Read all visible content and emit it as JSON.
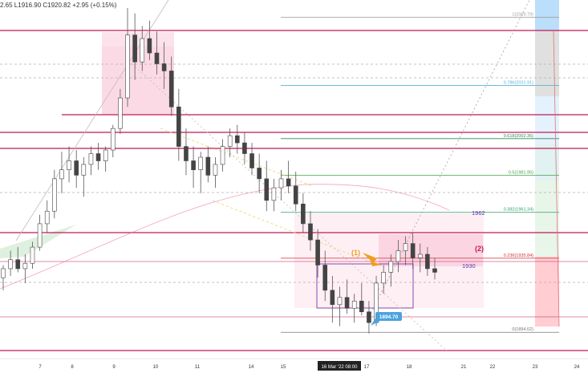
{
  "header": {
    "ohlc_text": "2.65 L1916.90 C1920.82 +2.95 (+0.15%)"
  },
  "chart_data": {
    "type": "candlestick",
    "instrument_hint": "",
    "x_tick_labels": [
      "7",
      "8",
      "9",
      "10",
      "11",
      "14",
      "15",
      "16 Mar '22  08:00",
      "17",
      "18",
      "21",
      "22",
      "23",
      "24"
    ],
    "crosshair_time_label": "16 Mar '22  08:00",
    "price_range": [
      1880,
      2075
    ],
    "price_label_1894": "1894.70",
    "fib_levels": [
      {
        "label": "1(2069.79)",
        "price": 2069.79,
        "color": "#9e9e9e"
      },
      {
        "label": "0.786(2031.91)",
        "price": 2031.91,
        "color": "#5ab3d0"
      },
      {
        "label": "0.618(2002.36)",
        "price": 2002.36,
        "color": "#2e8b57"
      },
      {
        "label": "0.5(1981.95)",
        "price": 1981.95,
        "color": "#43a047"
      },
      {
        "label": "0.382(1961.34)",
        "price": 1961.34,
        "color": "#2e9d6b"
      },
      {
        "label": "0.236(1935.84)",
        "price": 1935.84,
        "color": "#d32f2f"
      },
      {
        "label": "0(1894.62)",
        "price": 1894.62,
        "color": "#777777"
      }
    ],
    "annotations": [
      {
        "text": "1962",
        "color": "#5e35b1"
      },
      {
        "text": "1930",
        "color": "#5e35b1"
      },
      {
        "text": "(1)",
        "color": "#f29d1f"
      },
      {
        "text": "(2)",
        "color": "#c2185b"
      }
    ],
    "horizontal_lines": [
      2070,
      2025,
      2005,
      1998,
      1935,
      1875
    ],
    "candles_hourly": [
      [
        1925,
        1932,
        1918,
        1930
      ],
      [
        1930,
        1940,
        1926,
        1935
      ],
      [
        1935,
        1942,
        1928,
        1930
      ],
      [
        1930,
        1938,
        1922,
        1933
      ],
      [
        1933,
        1945,
        1930,
        1942
      ],
      [
        1942,
        1960,
        1940,
        1955
      ],
      [
        1955,
        1968,
        1950,
        1962
      ],
      [
        1962,
        1985,
        1958,
        1980
      ],
      [
        1980,
        1995,
        1972,
        1985
      ],
      [
        1985,
        1998,
        1978,
        1990
      ],
      [
        1990,
        1996,
        1975,
        1982
      ],
      [
        1982,
        1992,
        1970,
        1988
      ],
      [
        1988,
        1998,
        1982,
        1994
      ],
      [
        1994,
        2000,
        1985,
        1990
      ],
      [
        1990,
        1998,
        1984,
        1996
      ],
      [
        1996,
        2010,
        1992,
        2008
      ],
      [
        2008,
        2030,
        2005,
        2025
      ],
      [
        2025,
        2075,
        2020,
        2060
      ],
      [
        2060,
        2072,
        2035,
        2045
      ],
      [
        2045,
        2065,
        2040,
        2058
      ],
      [
        2058,
        2068,
        2046,
        2050
      ],
      [
        2050,
        2062,
        2038,
        2044
      ],
      [
        2044,
        2056,
        2030,
        2040
      ],
      [
        2040,
        2048,
        2015,
        2020
      ],
      [
        2020,
        2030,
        1990,
        1998
      ],
      [
        1998,
        2008,
        1982,
        1990
      ],
      [
        1990,
        1998,
        1975,
        1985
      ],
      [
        1985,
        1995,
        1972,
        1992
      ],
      [
        1992,
        1998,
        1978,
        1982
      ],
      [
        1982,
        1992,
        1975,
        1988
      ],
      [
        1988,
        2002,
        1984,
        1998
      ],
      [
        1998,
        2008,
        1992,
        2004
      ],
      [
        2004,
        2010,
        1994,
        2000
      ],
      [
        2000,
        2006,
        1988,
        1994
      ],
      [
        1994,
        2000,
        1982,
        1986
      ],
      [
        1986,
        1994,
        1972,
        1980
      ],
      [
        1980,
        1990,
        1962,
        1968
      ],
      [
        1968,
        1980,
        1962,
        1975
      ],
      [
        1975,
        1985,
        1968,
        1980
      ],
      [
        1980,
        1990,
        1972,
        1976
      ],
      [
        1976,
        1984,
        1962,
        1966
      ],
      [
        1966,
        1972,
        1950,
        1955
      ],
      [
        1955,
        1962,
        1940,
        1946
      ],
      [
        1946,
        1952,
        1925,
        1932
      ],
      [
        1932,
        1940,
        1912,
        1918
      ],
      [
        1918,
        1926,
        1900,
        1910
      ],
      [
        1910,
        1920,
        1898,
        1914
      ],
      [
        1914,
        1924,
        1905,
        1908
      ],
      [
        1908,
        1916,
        1900,
        1912
      ],
      [
        1912,
        1922,
        1904,
        1906
      ],
      [
        1906,
        1912,
        1894,
        1900
      ],
      [
        1900,
        1926,
        1898,
        1922
      ],
      [
        1922,
        1932,
        1916,
        1928
      ],
      [
        1928,
        1938,
        1920,
        1934
      ],
      [
        1934,
        1946,
        1928,
        1940
      ],
      [
        1940,
        1948,
        1932,
        1944
      ],
      [
        1944,
        1950,
        1930,
        1936
      ],
      [
        1936,
        1944,
        1928,
        1938
      ],
      [
        1938,
        1942,
        1926,
        1930
      ],
      [
        1930,
        1936,
        1924,
        1928
      ]
    ]
  }
}
